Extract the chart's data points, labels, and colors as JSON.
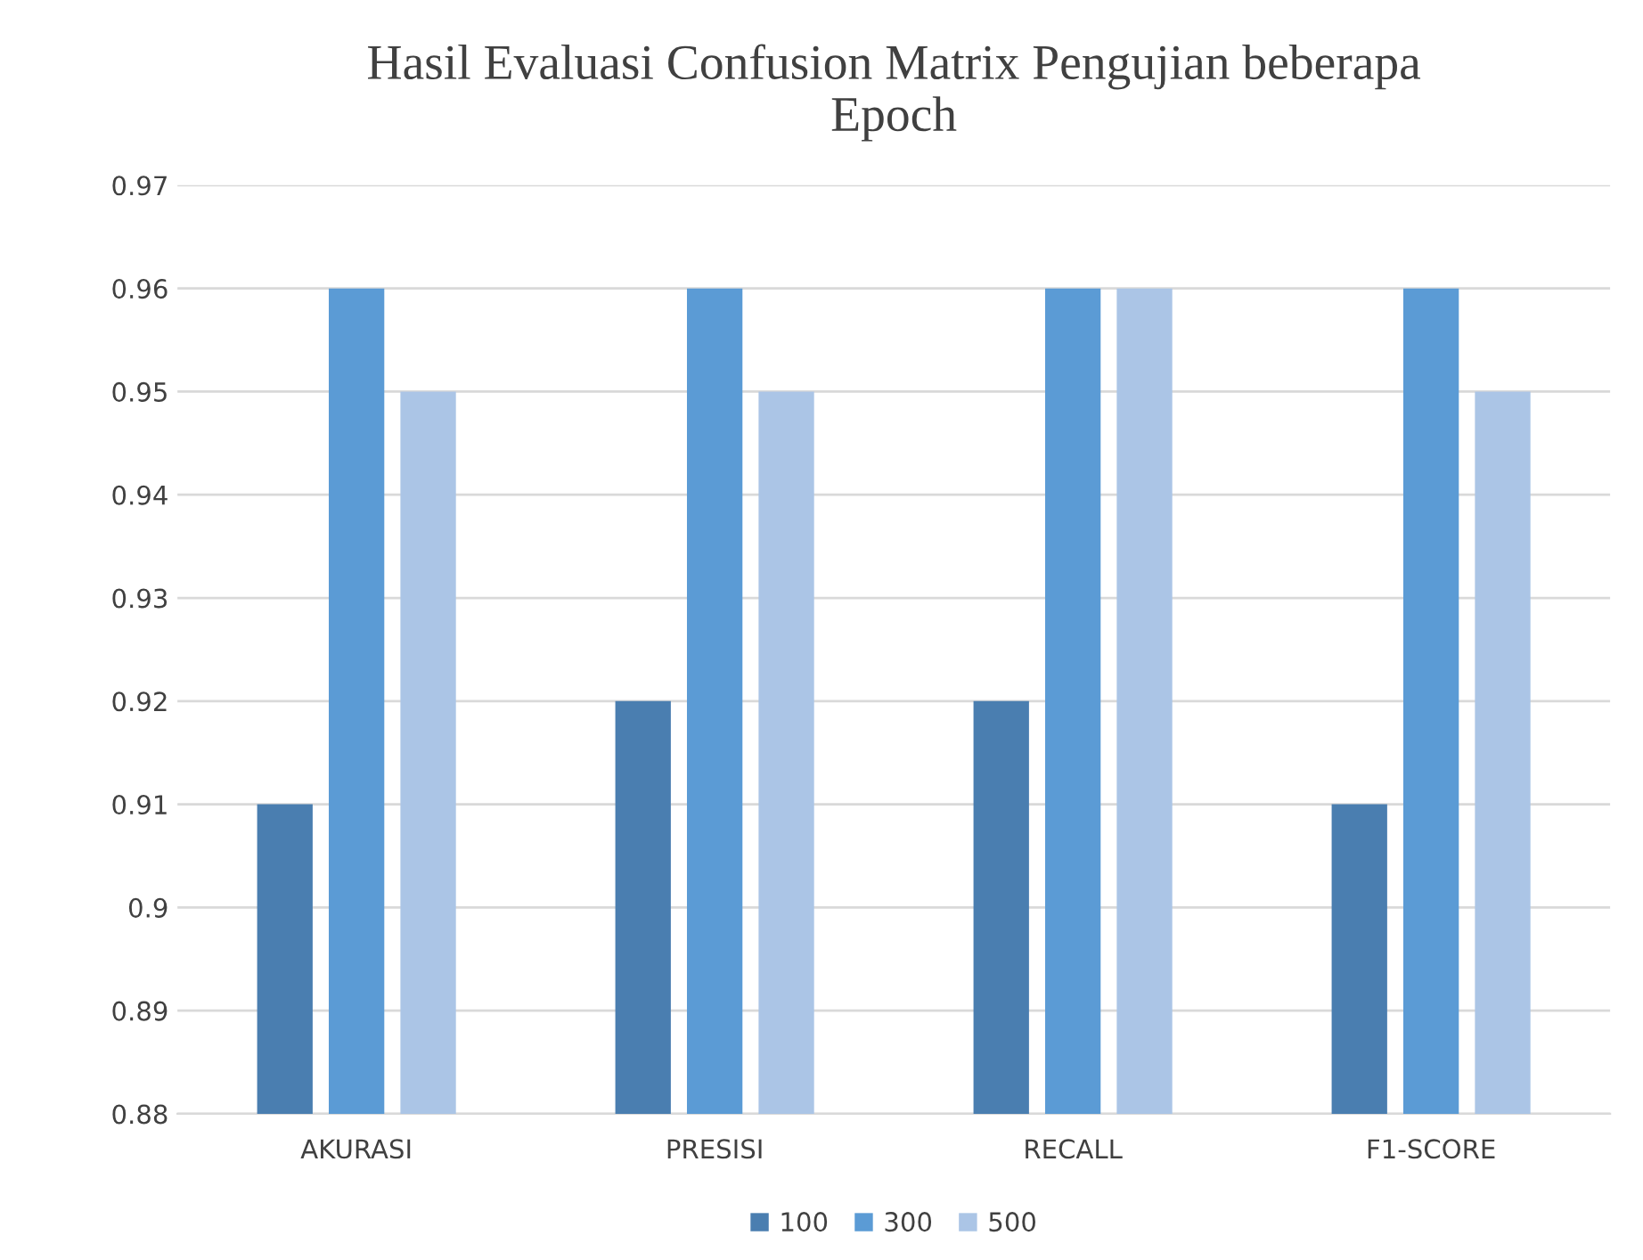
{
  "chart_data": {
    "type": "bar",
    "title": "Hasil Evaluasi Confusion Matrix Pengujian beberapa\nEpoch",
    "categories": [
      "AKURASI",
      "PRESISI",
      "RECALL",
      "F1-SCORE"
    ],
    "series": [
      {
        "name": "100",
        "color": "#4a7eb0",
        "values": [
          0.91,
          0.92,
          0.92,
          0.91
        ]
      },
      {
        "name": "300",
        "color": "#5b9bd5",
        "values": [
          0.96,
          0.96,
          0.96,
          0.96
        ]
      },
      {
        "name": "500",
        "color": "#abc5e6",
        "values": [
          0.95,
          0.95,
          0.96,
          0.95
        ]
      }
    ],
    "ylim": [
      0.88,
      0.97
    ],
    "yticks": [
      0.88,
      0.89,
      {
        "value": 0.9,
        "label": "0.9"
      },
      0.91,
      0.92,
      0.93,
      0.94,
      0.95,
      0.96,
      0.97
    ],
    "grid": "y",
    "legend": "bottom"
  }
}
